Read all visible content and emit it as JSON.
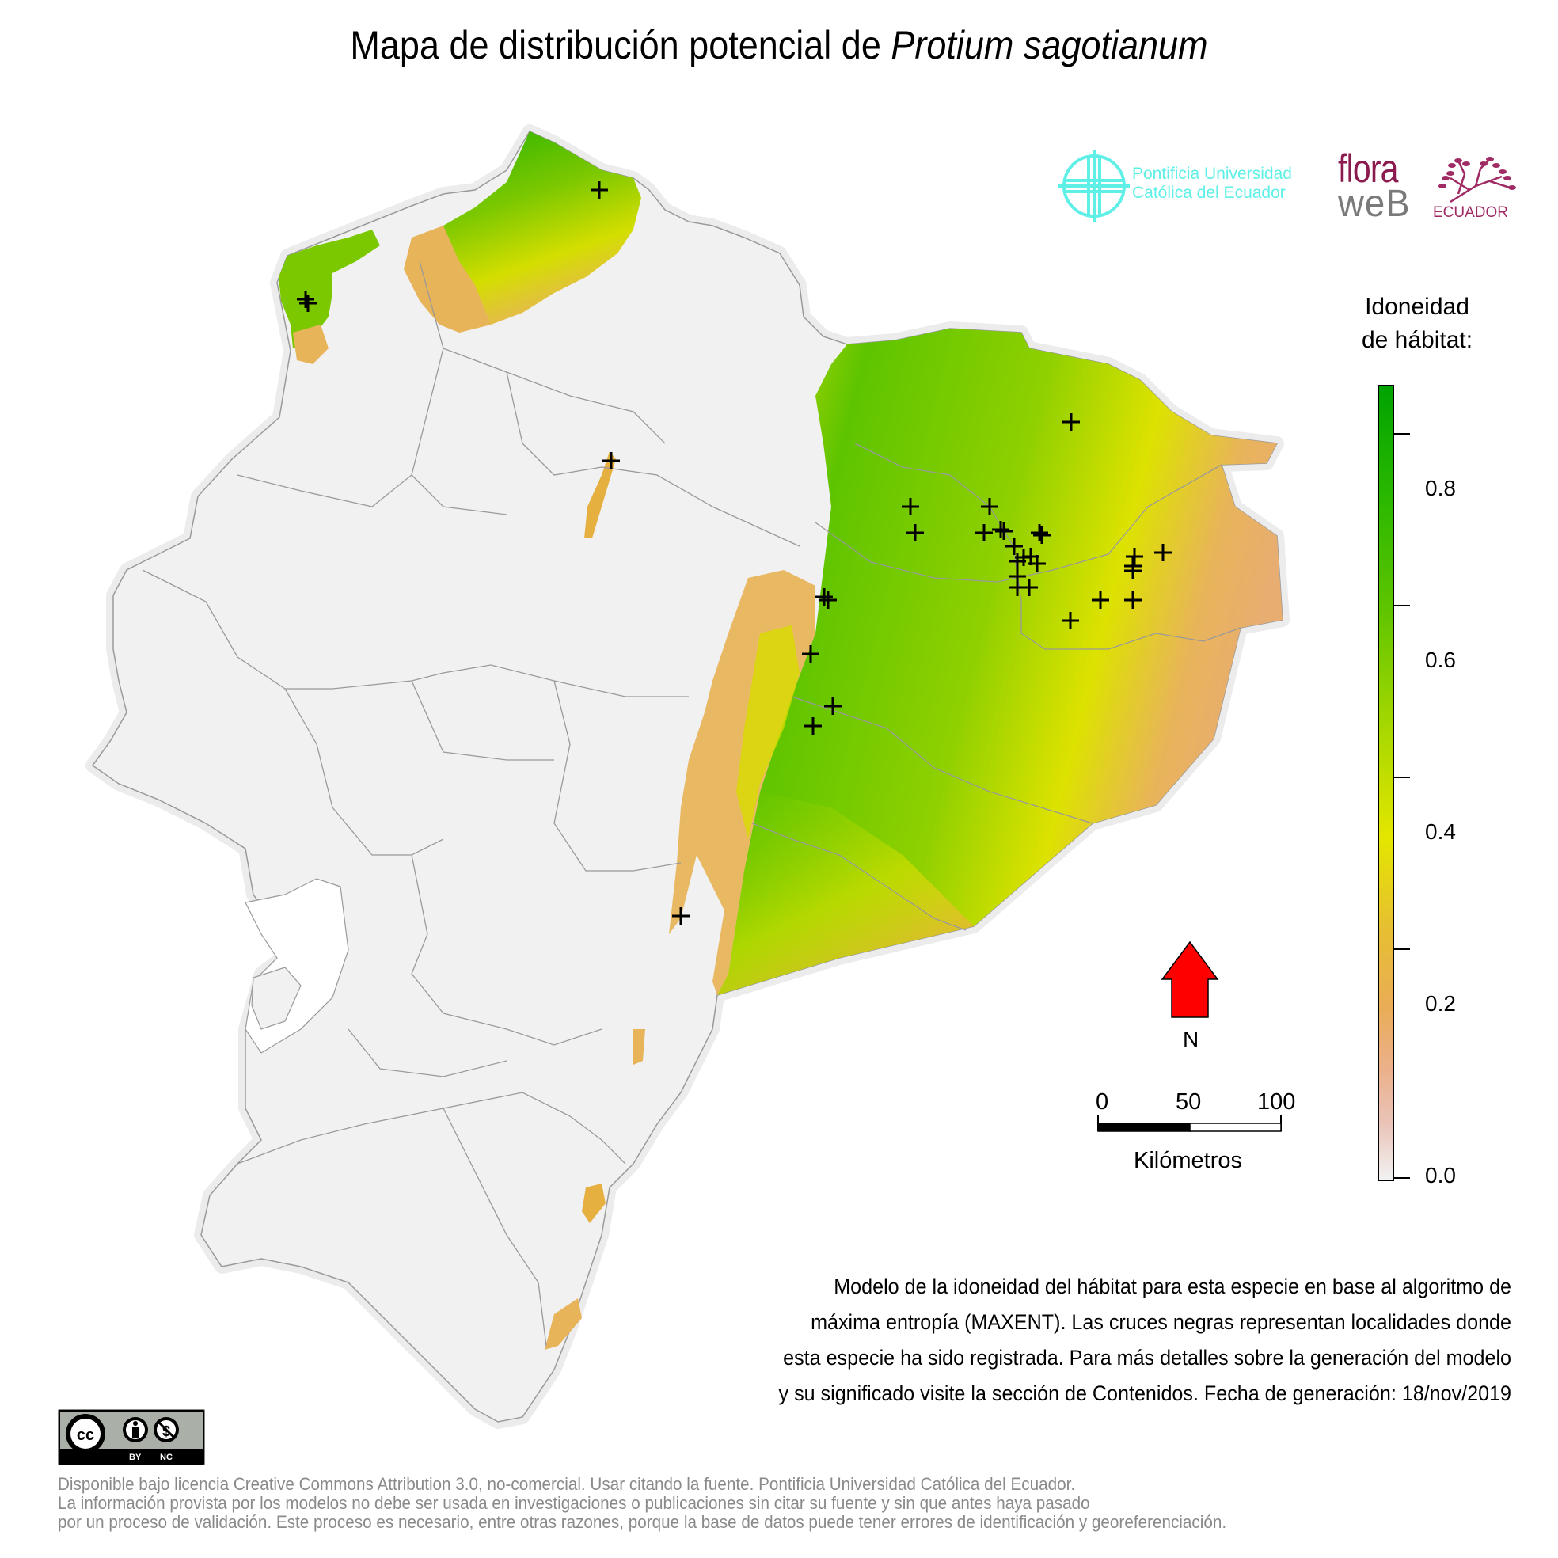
{
  "title": {
    "prefix": "Mapa de distribución potencial de ",
    "species": "Protium sagotianum"
  },
  "logos": {
    "puce": {
      "line1": "Pontificia Universidad",
      "line2": "Católica del Ecuador",
      "color": "#5ef0e6",
      "icon": "puce-cross-icon"
    },
    "floraweb": {
      "flora": "flora",
      "web": "weB",
      "country": "ECUADOR",
      "color_flora": "#8b1a4e",
      "color_web": "#7a7a7a",
      "icon": "tree-icon"
    }
  },
  "legend": {
    "title_line1": "Idoneidad",
    "title_line2": "de hábitat:",
    "ticks": [
      "0.8",
      "0.6",
      "0.4",
      "0.2",
      "0.0"
    ],
    "colors": {
      "high": "#00a300",
      "mid": "#e4e600",
      "low_mid": "#e9ad55",
      "zero": "#f2f2f2"
    }
  },
  "north_arrow": {
    "label": "N",
    "color": "#ff0000"
  },
  "scale_bar": {
    "labels": [
      "0",
      "50",
      "100"
    ],
    "units": "Kilómetros"
  },
  "description": {
    "lines": [
      "Modelo de la idoneidad del hábitat para esta especie en base al algoritmo de",
      "máxima entropía (MAXENT). Las cruces negras representan localidades donde",
      "esta especie ha sido registrada. Para más detalles sobre la generación del modelo",
      "y su significado visite la sección de Contenidos. Fecha de generación: 18/nov/2019"
    ]
  },
  "license": {
    "badge": {
      "cc": "cc",
      "by": "BY",
      "nc": "NC"
    },
    "lines": [
      "Disponible bajo licencia Creative Commons Attribution 3.0, no-comercial. Usar citando la fuente. Pontificia Universidad Católica del Ecuador.",
      "La información provista por los modelos no debe ser usada en investigaciones o publicaciones sin citar su fuente y sin que antes haya pasado",
      "por un proceso de validación. Este proceso es necesario, entre otras razones, porque la base de datos puede tener errores de identificación y georeferenciación."
    ]
  },
  "map": {
    "land_color": "#f1f1f1",
    "border_color": "#9a9a9a",
    "occurrence_marker": "plus-cross",
    "occurrences": [
      [
        757,
        240
      ],
      [
        389,
        383
      ],
      [
        386,
        378
      ],
      [
        772,
        582
      ],
      [
        1353,
        533
      ],
      [
        1150,
        640
      ],
      [
        1250,
        640
      ],
      [
        1156,
        673
      ],
      [
        1243,
        673
      ],
      [
        1264,
        669
      ],
      [
        1268,
        671
      ],
      [
        1313,
        673
      ],
      [
        1316,
        676
      ],
      [
        1281,
        690
      ],
      [
        1285,
        709
      ],
      [
        1293,
        704
      ],
      [
        1302,
        703
      ],
      [
        1310,
        712
      ],
      [
        1285,
        728
      ],
      [
        1285,
        742
      ],
      [
        1300,
        742
      ],
      [
        1433,
        703
      ],
      [
        1431,
        715
      ],
      [
        1431,
        721
      ],
      [
        1469,
        698
      ],
      [
        1390,
        758
      ],
      [
        1431,
        758
      ],
      [
        1352,
        784
      ],
      [
        1041,
        754
      ],
      [
        1046,
        758
      ],
      [
        1024,
        826
      ],
      [
        1052,
        892
      ],
      [
        1027,
        917
      ],
      [
        860,
        1157
      ]
    ]
  }
}
